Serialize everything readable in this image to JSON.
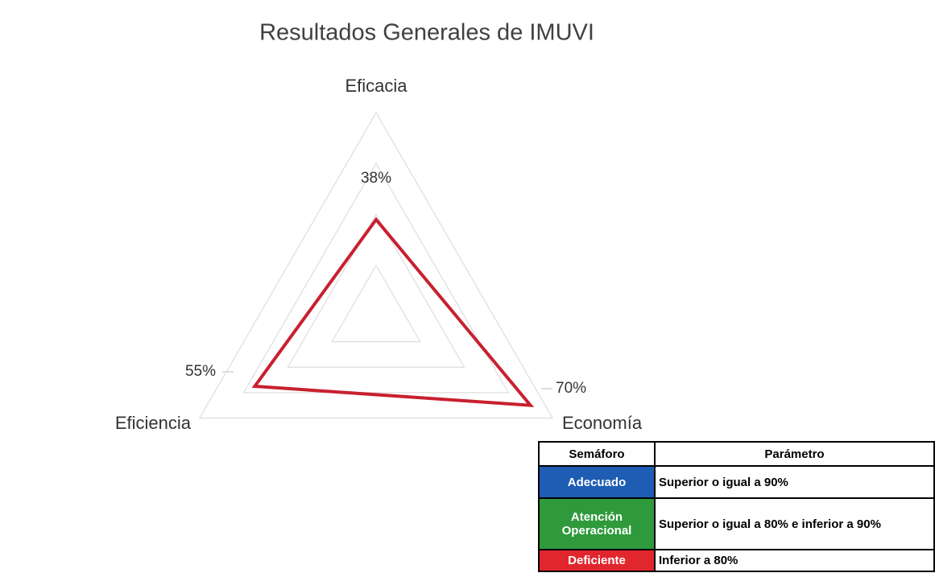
{
  "chart_data": {
    "type": "radar",
    "title": "Resultados Generales de IMUVI",
    "categories": [
      "Eficacia",
      "Economía",
      "Eficiencia"
    ],
    "values": [
      38,
      70,
      55
    ],
    "value_labels": [
      "38%",
      "70%",
      "55%"
    ],
    "color": "#c8202f",
    "rlim": [
      0,
      80
    ],
    "rticks": [
      20,
      40,
      60,
      80
    ],
    "grid": true
  },
  "table": {
    "header": [
      "Semáforo",
      "Parámetro"
    ],
    "rows": [
      {
        "label": "Adecuado",
        "color": "#1f5db4",
        "parameter": "Superior o igual a 90%"
      },
      {
        "label": "Atención Operacional",
        "color": "#2e9a3c",
        "parameter": "Superior o igual a 80% e inferior a 90%"
      },
      {
        "label": "Deficiente",
        "color": "#e1262d",
        "parameter": "Inferior a 80%"
      }
    ]
  }
}
